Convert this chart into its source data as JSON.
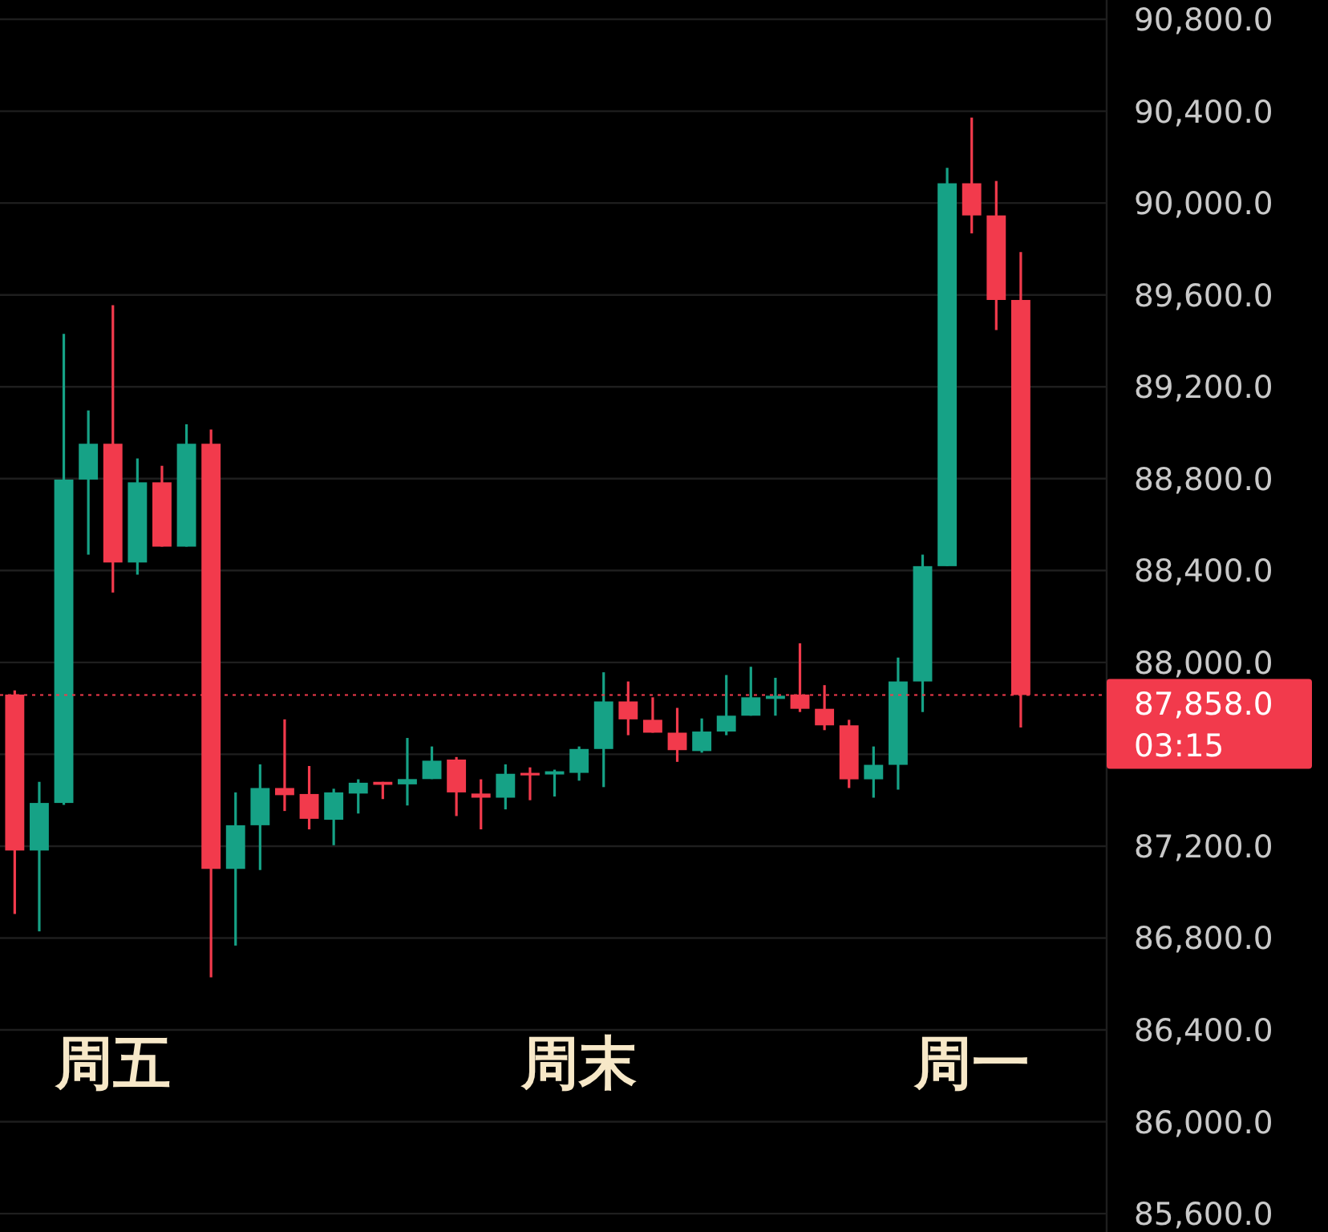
{
  "chart_data": {
    "type": "candlestick",
    "categories": [
      null,
      null,
      null,
      null,
      "周五",
      null,
      null,
      null,
      null,
      null,
      null,
      null,
      null,
      null,
      null,
      null,
      null,
      null,
      null,
      null,
      null,
      null,
      null,
      "周末",
      null,
      null,
      null,
      null,
      null,
      null,
      null,
      null,
      null,
      null,
      null,
      null,
      null,
      null,
      null,
      "周一",
      null,
      null
    ],
    "ohlc": [
      [
        87860,
        87878,
        86905,
        87181
      ],
      [
        87181,
        87480,
        86829,
        87388
      ],
      [
        87388,
        89430,
        87380,
        88796
      ],
      [
        88796,
        89097,
        88469,
        88952
      ],
      [
        88952,
        89555,
        88304,
        88435
      ],
      [
        88435,
        88888,
        88382,
        88784
      ],
      [
        88784,
        88856,
        88504,
        88504
      ],
      [
        88504,
        89037,
        88504,
        88952
      ],
      [
        88952,
        89014,
        86629,
        87101
      ],
      [
        87101,
        87434,
        86767,
        87291
      ],
      [
        87291,
        87556,
        87096,
        87453
      ],
      [
        87453,
        87752,
        87353,
        87422
      ],
      [
        87427,
        87549,
        87273,
        87319
      ],
      [
        87315,
        87450,
        87204,
        87434
      ],
      [
        87429,
        87491,
        87342,
        87476
      ],
      [
        87480,
        87480,
        87405,
        87467
      ],
      [
        87469,
        87671,
        87377,
        87492
      ],
      [
        87492,
        87634,
        87492,
        87572
      ],
      [
        87577,
        87588,
        87331,
        87434
      ],
      [
        87429,
        87491,
        87273,
        87411
      ],
      [
        87411,
        87556,
        87360,
        87515
      ],
      [
        87519,
        87543,
        87400,
        87508
      ],
      [
        87512,
        87533,
        87416,
        87526
      ],
      [
        87519,
        87634,
        87485,
        87623
      ],
      [
        87623,
        87957,
        87457,
        87830
      ],
      [
        87830,
        87917,
        87683,
        87752
      ],
      [
        87750,
        87848,
        87694,
        87694
      ],
      [
        87694,
        87802,
        87567,
        87618
      ],
      [
        87614,
        87756,
        87607,
        87699
      ],
      [
        87699,
        87945,
        87683,
        87768
      ],
      [
        87768,
        87981,
        87768,
        87848
      ],
      [
        87841,
        87933,
        87768,
        87855
      ],
      [
        87860,
        88083,
        87784,
        87798
      ],
      [
        87798,
        87901,
        87705,
        87726
      ],
      [
        87726,
        87750,
        87453,
        87491
      ],
      [
        87491,
        87634,
        87411,
        87554
      ],
      [
        87554,
        88021,
        87446,
        87917
      ],
      [
        87917,
        88469,
        87784,
        88419
      ],
      [
        88419,
        90153,
        88419,
        90086
      ],
      [
        90086,
        90372,
        89868,
        89946
      ],
      [
        89946,
        90096,
        89447,
        89578
      ],
      [
        89578,
        89787,
        87717,
        87858
      ]
    ],
    "ylim": [
      85520,
      90884
    ],
    "yticks": [
      {
        "value": 85600,
        "label": "85,600.0"
      },
      {
        "value": 86000,
        "label": "86,000.0"
      },
      {
        "value": 86400,
        "label": "86,400.0"
      },
      {
        "value": 86800,
        "label": "86,800.0"
      },
      {
        "value": 87200,
        "label": "87,200.0"
      },
      {
        "value": 87600,
        "label": null
      },
      {
        "value": 88000,
        "label": "88,000.0"
      },
      {
        "value": 88400,
        "label": "88,400.0"
      },
      {
        "value": 88800,
        "label": "88,800.0"
      },
      {
        "value": 89200,
        "label": "89,200.0"
      },
      {
        "value": 89600,
        "label": "89,600.0"
      },
      {
        "value": 90000,
        "label": "90,000.0"
      },
      {
        "value": 90400,
        "label": "90,400.0"
      },
      {
        "value": 90800,
        "label": "90,800.0"
      }
    ],
    "grid": "y",
    "ref_lines": [
      {
        "axis": "y",
        "value": 87858,
        "label": "87,858.0",
        "color": "#f23a4c"
      }
    ],
    "annotations": [
      "03:15"
    ]
  }
}
